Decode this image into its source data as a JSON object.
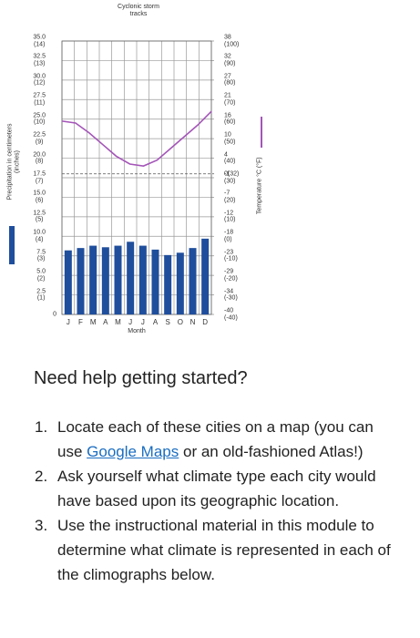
{
  "chart_data": {
    "type": "combo",
    "title": "Cyclonic storm\ntracks",
    "xlabel": "Month",
    "ylabel": "Precipitation in centimeters (inches)",
    "y2label": "Temperature °C (°F)",
    "categories": [
      "J",
      "F",
      "M",
      "A",
      "M",
      "J",
      "J",
      "A",
      "S",
      "O",
      "N",
      "D"
    ],
    "series": [
      {
        "type": "bar",
        "color": "#1f4e9c",
        "values": [
          8.2,
          8.5,
          8.8,
          8.6,
          8.8,
          9.3,
          8.8,
          8.3,
          7.6,
          7.9,
          8.5,
          9.7
        ]
      },
      {
        "type": "line",
        "axis": "y2",
        "color": "#a455b8",
        "values": [
          59,
          58,
          53,
          47,
          41,
          37,
          36,
          39,
          45,
          51,
          57,
          64
        ]
      }
    ],
    "ylim": [
      0,
      35
    ],
    "yticks": [
      0,
      {
        "value": 2.5,
        "label": "2.5\n(1)"
      },
      {
        "value": 5,
        "label": "5.0\n(2)"
      },
      {
        "value": 7.5,
        "label": "7.5\n(3)"
      },
      {
        "value": 10,
        "label": "10.0\n(4)"
      },
      {
        "value": 12.5,
        "label": "12.5\n(5)"
      },
      {
        "value": 15,
        "label": "15.0\n(6)"
      },
      {
        "value": 17.5,
        "label": "17.5\n(7)"
      },
      {
        "value": 20,
        "label": "20.0\n(8)"
      },
      {
        "value": 22.5,
        "label": "22.5\n(9)"
      },
      {
        "value": 25,
        "label": "25.0\n(10)"
      },
      {
        "value": 27.5,
        "label": "27.5\n(11)"
      },
      {
        "value": 30,
        "label": "30.0\n(12)"
      },
      {
        "value": 32.5,
        "label": "32.5\n(13)"
      },
      {
        "value": 35,
        "label": "35.0\n(14)"
      }
    ],
    "y2lim": [
      -40,
      100
    ],
    "y2ticks": [
      {
        "value": -40,
        "label": "-40\n(-40)"
      },
      {
        "value": -30,
        "label": "-34\n(-30)"
      },
      {
        "value": -20,
        "label": "-29\n(-20)"
      },
      {
        "value": -10,
        "label": "-23\n(-10)"
      },
      {
        "value": 0,
        "label": "-18\n(0)"
      },
      {
        "value": 10,
        "label": "-12\n(10)"
      },
      {
        "value": 20,
        "label": "-7\n(20)"
      },
      {
        "value": 30,
        "label": "-1\n(30)"
      },
      {
        "value": 32,
        "label": "0(32)"
      },
      {
        "value": 40,
        "label": "4\n(40)"
      },
      {
        "value": 50,
        "label": "10\n(50)"
      },
      {
        "value": 60,
        "label": "16\n(60)"
      },
      {
        "value": 70,
        "label": "21\n(70)"
      },
      {
        "value": 80,
        "label": "27\n(80)"
      },
      {
        "value": 90,
        "label": "32\n(90)"
      },
      {
        "value": 100,
        "label": "38\n(100)"
      }
    ],
    "grid": true
  },
  "help": {
    "heading": "Need help getting started?",
    "items": [
      {
        "number": "1.",
        "parts": [
          "Locate each of these cities on a map (you can use ",
          "Google Maps",
          " or an old-fashioned Atlas!)"
        ]
      },
      {
        "number": "2.",
        "parts": [
          "Ask yourself what climate type each city would have based upon its geographic location."
        ]
      },
      {
        "number": "3.",
        "parts": [
          "Use the instructional material in this module to determine what climate is represented in each of the climographs below."
        ]
      }
    ]
  }
}
